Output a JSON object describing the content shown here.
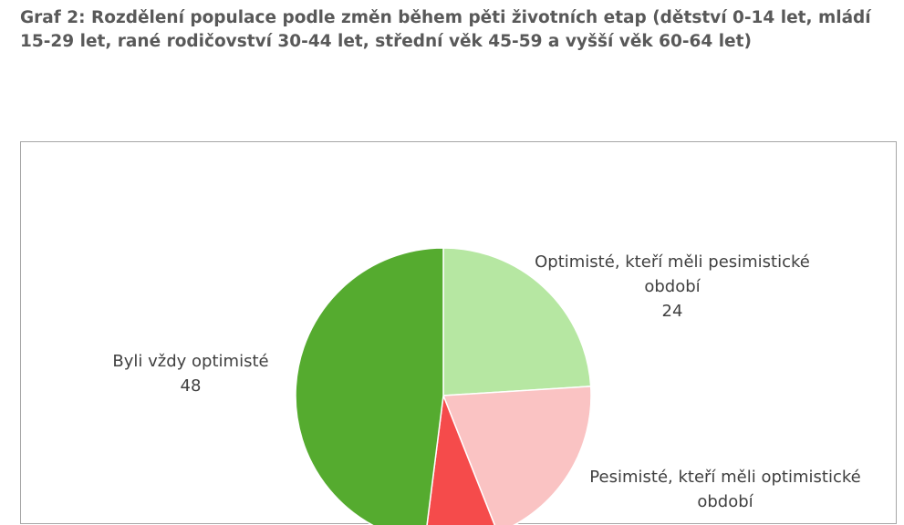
{
  "title": {
    "line1": "Graf 2: Rozdělení populace podle změn během pěti životních etap (dětství 0-14 let, mládí",
    "line2": "15-29 let, rané rodičovství 30-44 let, střední věk 45-59 a vyšší věk 60-64 let)"
  },
  "chart_data": {
    "type": "pie",
    "start_angle_deg": 0,
    "direction": "clockwise",
    "slices": [
      {
        "name": "Optimisté, kteří měli pesimistické období",
        "label_lines": [
          "Optimisté, kteří měli pesimistické",
          "období"
        ],
        "value": 24,
        "value_text": "24",
        "color": "#b6e7a2"
      },
      {
        "name": "Pesimisté, kteří měli optimistické období",
        "label_lines": [
          "Pesimisté, kteří měli optimistické",
          "období"
        ],
        "value": 20,
        "value_text": "",
        "color": "#fac3c3"
      },
      {
        "name": "",
        "label_lines": [],
        "value": 8,
        "value_text": "",
        "color": "#f54b4b"
      },
      {
        "name": "Byli vždy optimisté",
        "label_lines": [
          "Byli vždy optimisté"
        ],
        "value": 48,
        "value_text": "48",
        "color": "#55ab2f"
      }
    ]
  }
}
